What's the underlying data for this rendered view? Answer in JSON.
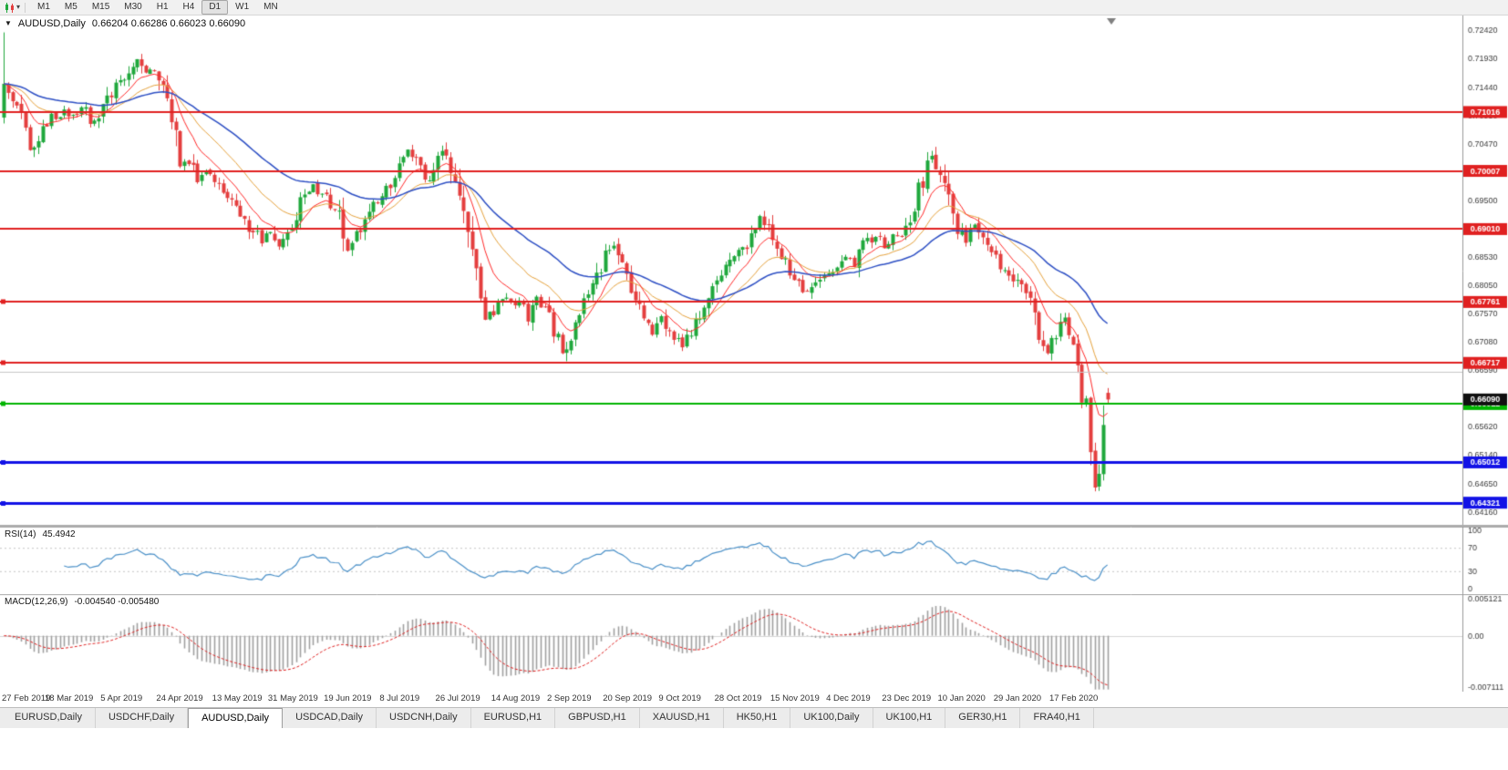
{
  "toolbar": {
    "chart_type_icon": "candlestick-chart-icon",
    "timeframes": [
      "M1",
      "M5",
      "M15",
      "M30",
      "H1",
      "H4",
      "D1",
      "W1",
      "MN"
    ],
    "active_timeframe": "D1"
  },
  "chart": {
    "symbol_label": "AUDUSD,Daily",
    "ohlc": "0.66204 0.66286 0.66023 0.66090",
    "current_price": {
      "label": "0.66090",
      "color": "#101010"
    },
    "price_axis_ticks": [
      "0.72420",
      "0.71930",
      "0.71440",
      "0.70950",
      "0.70470",
      "0.69980",
      "0.69500",
      "0.69010",
      "0.68530",
      "0.68050",
      "0.67570",
      "0.67080",
      "0.66590",
      "0.66110",
      "0.65620",
      "0.65140",
      "0.64650",
      "0.64160"
    ],
    "lines": [
      {
        "price": 0.71016,
        "label": "0.71016",
        "color": "#e02020",
        "width": 2,
        "handle": false
      },
      {
        "price": 0.70007,
        "label": "0.70007",
        "color": "#e02020",
        "width": 2,
        "handle": false
      },
      {
        "price": 0.6901,
        "label": "0.69010",
        "color": "#e02020",
        "width": 2,
        "handle": false
      },
      {
        "price": 0.67761,
        "label": "0.67761",
        "color": "#e02020",
        "width": 2,
        "handle": true
      },
      {
        "price": 0.66717,
        "label": "0.66717",
        "color": "#e02020",
        "width": 2,
        "handle": true
      },
      {
        "price": 0.6656,
        "label": null,
        "color": "#c8c8c8",
        "width": 1,
        "handle": false
      },
      {
        "price": 0.66012,
        "label": "0.66012",
        "color": "#00b400",
        "width": 2,
        "handle": true
      },
      {
        "price": 0.65012,
        "label": "0.65012",
        "color": "#1212e6",
        "width": 3,
        "handle": true
      },
      {
        "price": 0.64321,
        "label": "0.64321",
        "color": "#1212e6",
        "width": 3,
        "handle": true
      }
    ],
    "colors": {
      "up": "#1fa83c",
      "down": "#e43e3e",
      "ma_fast": "#ff2a2a",
      "ma_mid": "#e6a23c",
      "ma_slow": "#2d4fc4",
      "rsi_line": "#4a90c8",
      "macd_hist": "#a0a0a0",
      "macd_signal": "#e02020"
    }
  },
  "rsi_panel": {
    "label": "RSI(14)",
    "value": "45.4942",
    "axis_labels": [
      "100",
      "70",
      "30",
      "0"
    ],
    "dotted_levels": [
      70,
      30
    ]
  },
  "macd_panel": {
    "label": "MACD(12,26,9)",
    "values": "-0.004540 -0.005480",
    "axis_labels": [
      "0.005121",
      "0.00",
      "-0.007111"
    ]
  },
  "tabs": {
    "active_index": 2,
    "items": [
      "EURUSD,Daily",
      "USDCHF,Daily",
      "AUDUSD,Daily",
      "USDCAD,Daily",
      "USDCNH,Daily",
      "EURUSD,H1",
      "GBPUSD,H1",
      "XAUUSD,H1",
      "HK50,H1",
      "UK100,Daily",
      "UK100,H1",
      "GER30,H1",
      "FRA40,H1"
    ]
  },
  "chart_data": {
    "type": "candlestick",
    "title": "AUDUSD,Daily",
    "symbol": "AUDUSD",
    "timeframe": "D1",
    "num_candles": 258,
    "y_range": [
      0.6391,
      0.7267
    ],
    "x_labels": [
      "27 Feb 2019",
      "18 Mar 2019",
      "5 Apr 2019",
      "24 Apr 2019",
      "13 May 2019",
      "31 May 2019",
      "19 Jun 2019",
      "8 Jul 2019",
      "26 Jul 2019",
      "14 Aug 2019",
      "2 Sep 2019",
      "20 Sep 2019",
      "9 Oct 2019",
      "28 Oct 2019",
      "15 Nov 2019",
      "4 Dec 2019",
      "23 Dec 2019",
      "10 Jan 2020",
      "29 Jan 2020",
      "17 Feb 2020"
    ],
    "x_label_first_index": 2,
    "x_label_step": 13,
    "price_anchors": [
      [
        0,
        0.715
      ],
      [
        2,
        0.7126
      ],
      [
        4,
        0.7086
      ],
      [
        6,
        0.7036
      ],
      [
        8,
        0.7058
      ],
      [
        11,
        0.709
      ],
      [
        14,
        0.7102
      ],
      [
        16,
        0.7094
      ],
      [
        18,
        0.7116
      ],
      [
        20,
        0.7082
      ],
      [
        23,
        0.7106
      ],
      [
        26,
        0.7146
      ],
      [
        29,
        0.7176
      ],
      [
        31,
        0.7192
      ],
      [
        33,
        0.7168
      ],
      [
        35,
        0.7176
      ],
      [
        37,
        0.714
      ],
      [
        39,
        0.709
      ],
      [
        41,
        0.7008
      ],
      [
        43,
        0.7018
      ],
      [
        45,
        0.6988
      ],
      [
        47,
        0.7
      ],
      [
        49,
        0.6984
      ],
      [
        52,
        0.6958
      ],
      [
        54,
        0.6938
      ],
      [
        57,
        0.6906
      ],
      [
        60,
        0.6882
      ],
      [
        62,
        0.6896
      ],
      [
        64,
        0.6868
      ],
      [
        66,
        0.6886
      ],
      [
        69,
        0.6946
      ],
      [
        72,
        0.6972
      ],
      [
        75,
        0.6958
      ],
      [
        78,
        0.6924
      ],
      [
        80,
        0.6868
      ],
      [
        82,
        0.6888
      ],
      [
        85,
        0.693
      ],
      [
        88,
        0.6958
      ],
      [
        91,
        0.6994
      ],
      [
        94,
        0.7032
      ],
      [
        96,
        0.7016
      ],
      [
        98,
        0.6978
      ],
      [
        100,
        0.6992
      ],
      [
        102,
        0.7036
      ],
      [
        104,
        0.7008
      ],
      [
        106,
        0.6962
      ],
      [
        108,
        0.6898
      ],
      [
        110,
        0.683
      ],
      [
        112,
        0.6758
      ],
      [
        114,
        0.6762
      ],
      [
        116,
        0.6786
      ],
      [
        118,
        0.6772
      ],
      [
        120,
        0.6778
      ],
      [
        122,
        0.6748
      ],
      [
        124,
        0.678
      ],
      [
        126,
        0.6762
      ],
      [
        128,
        0.6728
      ],
      [
        130,
        0.6692
      ],
      [
        132,
        0.6722
      ],
      [
        135,
        0.6772
      ],
      [
        138,
        0.682
      ],
      [
        140,
        0.686
      ],
      [
        142,
        0.6872
      ],
      [
        145,
        0.6812
      ],
      [
        148,
        0.6762
      ],
      [
        151,
        0.6722
      ],
      [
        153,
        0.6746
      ],
      [
        156,
        0.6712
      ],
      [
        158,
        0.67
      ],
      [
        161,
        0.6742
      ],
      [
        164,
        0.6786
      ],
      [
        167,
        0.6822
      ],
      [
        170,
        0.685
      ],
      [
        173,
        0.6878
      ],
      [
        176,
        0.692
      ],
      [
        178,
        0.69
      ],
      [
        180,
        0.6862
      ],
      [
        182,
        0.6842
      ],
      [
        184,
        0.6816
      ],
      [
        187,
        0.6792
      ],
      [
        190,
        0.6812
      ],
      [
        193,
        0.6832
      ],
      [
        196,
        0.685
      ],
      [
        198,
        0.6842
      ],
      [
        200,
        0.6874
      ],
      [
        203,
        0.689
      ],
      [
        205,
        0.6872
      ],
      [
        208,
        0.689
      ],
      [
        210,
        0.6906
      ],
      [
        212,
        0.6946
      ],
      [
        214,
        0.6986
      ],
      [
        216,
        0.7024
      ],
      [
        218,
        0.7
      ],
      [
        220,
        0.6952
      ],
      [
        222,
        0.6906
      ],
      [
        224,
        0.6882
      ],
      [
        226,
        0.6906
      ],
      [
        229,
        0.6872
      ],
      [
        232,
        0.6842
      ],
      [
        235,
        0.6818
      ],
      [
        237,
        0.68
      ],
      [
        239,
        0.6772
      ],
      [
        241,
        0.6722
      ],
      [
        243,
        0.6692
      ],
      [
        245,
        0.6716
      ],
      [
        247,
        0.6744
      ],
      [
        249,
        0.6702
      ],
      [
        250,
        0.668
      ],
      [
        251,
        0.6624
      ],
      [
        252,
        0.6586
      ],
      [
        253,
        0.6542
      ],
      [
        254,
        0.6452
      ],
      [
        255,
        0.6512
      ],
      [
        256,
        0.657
      ],
      [
        257,
        0.6609
      ]
    ],
    "first_candle": {
      "open": 0.7092,
      "high": 0.7238,
      "low": 0.7082,
      "close": 0.715
    },
    "last_candle": {
      "open": 0.66204,
      "high": 0.66286,
      "low": 0.66023,
      "close": 0.6609
    },
    "moving_averages": [
      {
        "period": 9,
        "color_key": "ma_fast"
      },
      {
        "period": 20,
        "color_key": "ma_mid"
      },
      {
        "period": 45,
        "color_key": "ma_slow"
      }
    ],
    "horizontal_levels": [
      0.71016,
      0.70007,
      0.6901,
      0.67761,
      0.66717,
      0.66012,
      0.65012,
      0.64321
    ],
    "indicators": [
      {
        "name": "RSI",
        "period": 14,
        "current": 45.4942
      },
      {
        "name": "MACD",
        "fast": 12,
        "slow": 26,
        "signal": 9,
        "current_macd": -0.00454,
        "current_signal": -0.00548
      }
    ]
  }
}
